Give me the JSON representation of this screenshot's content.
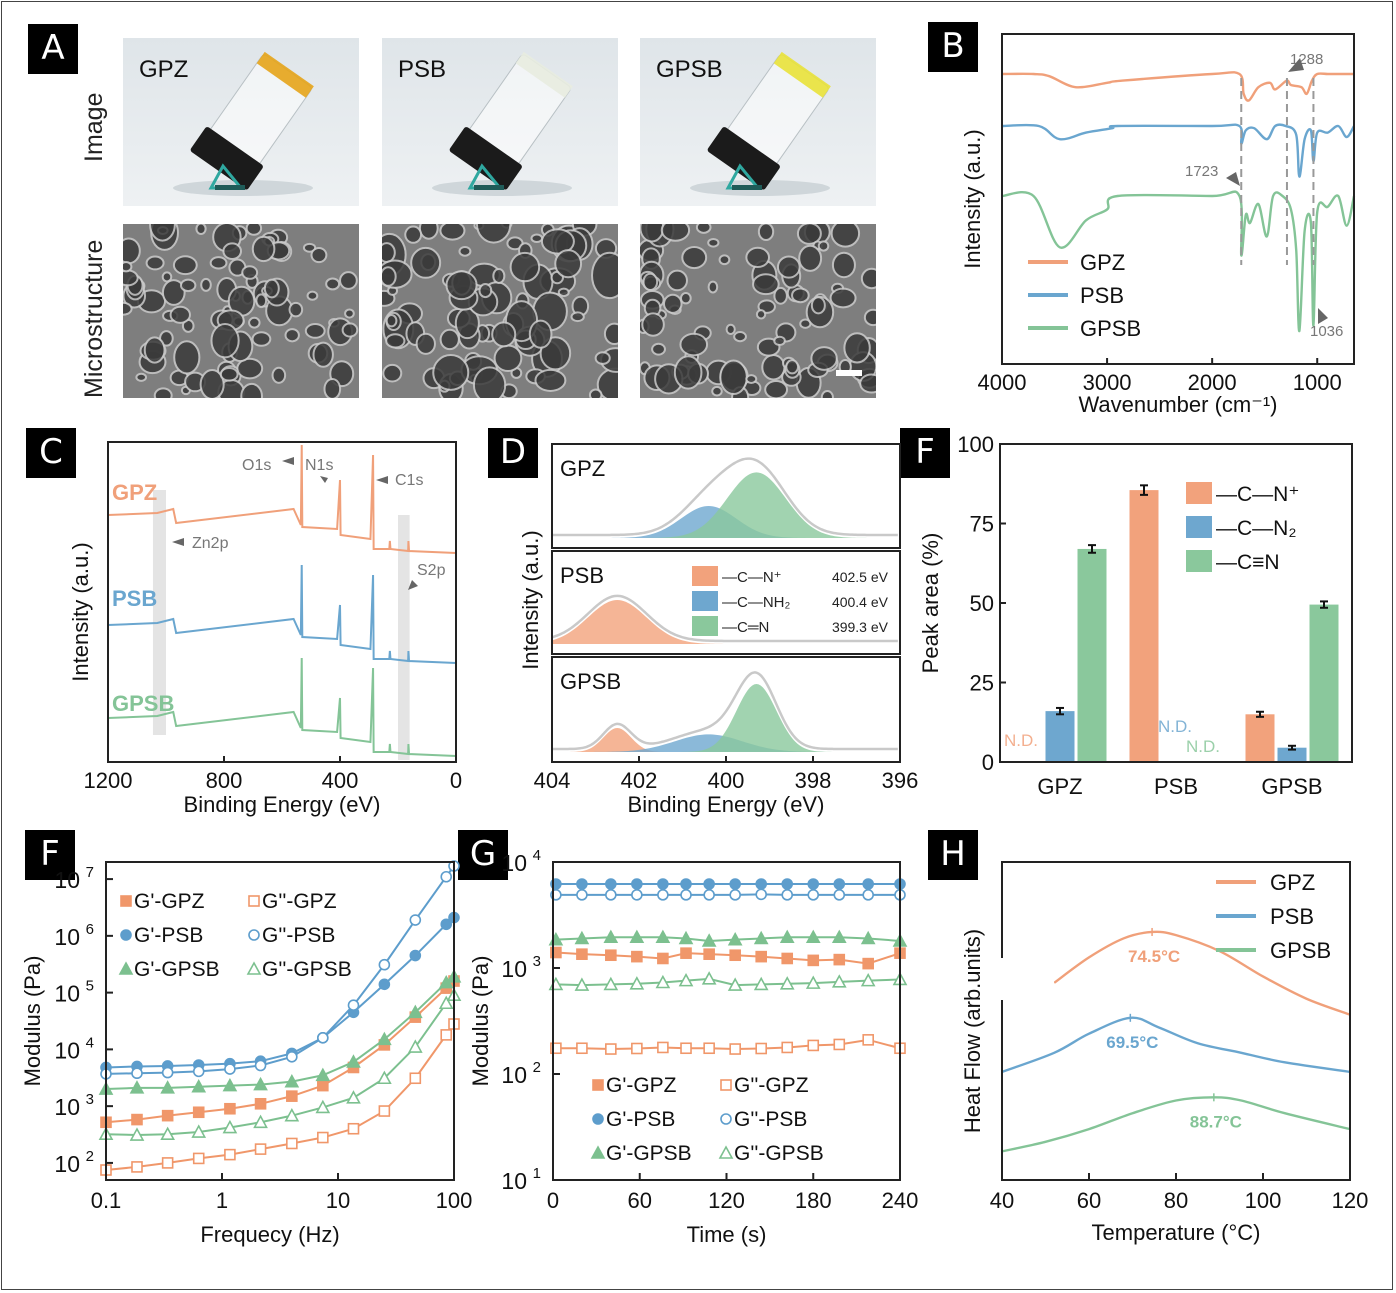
{
  "panels": {
    "A": {
      "label": "A",
      "row_labels": [
        "Image",
        "Microstructure"
      ],
      "samples": [
        "GPZ",
        "PSB",
        "GPSB"
      ],
      "gel_colors": [
        "#e6a419",
        "#e8ece0",
        "#e9e23a"
      ]
    },
    "B": {
      "label": "B"
    },
    "C": {
      "label": "C"
    },
    "D": {
      "label": "D"
    },
    "E": {
      "label": "F"
    },
    "F": {
      "label": "F"
    },
    "G": {
      "label": "G"
    },
    "H": {
      "label": "H"
    }
  },
  "colors": {
    "GPZ": "#f0a07a",
    "PSB": "#6aa6cf",
    "GPSB": "#84c497"
  },
  "chart_data": [
    {
      "id": "B",
      "type": "line",
      "title": "",
      "xlabel": "Wavenumber (cm-1)",
      "ylabel": "Intensity (a.u.)",
      "xlim": [
        4000,
        650
      ],
      "xticks": [
        4000,
        3000,
        2000,
        1000
      ],
      "legend": [
        "GPZ",
        "PSB",
        "GPSB"
      ],
      "legend_position": "bottom-left",
      "annotations": [
        "1288",
        "1723",
        "1036"
      ],
      "marker_lines": [
        1723,
        1288,
        1036
      ],
      "series": [
        {
          "name": "GPZ",
          "x": [
            4000,
            3700,
            3550,
            3300,
            3000,
            2850,
            2000,
            1740,
            1700,
            1650,
            1560,
            1450,
            1400,
            1290,
            1250,
            1150,
            1100,
            1050,
            1000,
            900,
            800,
            650
          ],
          "y": [
            0,
            0,
            -0.1,
            -0.6,
            -0.4,
            -0.3,
            0,
            0,
            -0.9,
            -1.2,
            -0.6,
            -0.4,
            -0.7,
            -0.3,
            -0.5,
            -0.6,
            -0.9,
            -0.3,
            0,
            0,
            0,
            0
          ]
        },
        {
          "name": "PSB",
          "x": [
            4000,
            3650,
            3450,
            3200,
            2950,
            2900,
            2000,
            1740,
            1723,
            1680,
            1600,
            1480,
            1400,
            1300,
            1200,
            1170,
            1120,
            1060,
            1036,
            1000,
            900,
            800,
            720,
            650
          ],
          "y": [
            0,
            0,
            -0.6,
            -0.3,
            -0.1,
            0,
            0,
            0,
            -0.8,
            -0.2,
            -0.1,
            -0.6,
            0,
            0,
            -0.4,
            -2.3,
            -0.6,
            -0.2,
            -1.6,
            -0.3,
            -0.3,
            0,
            -0.5,
            0
          ]
        },
        {
          "name": "GPSB",
          "x": [
            4000,
            3700,
            3450,
            3200,
            3000,
            2900,
            2000,
            1740,
            1723,
            1680,
            1640,
            1560,
            1480,
            1420,
            1330,
            1250,
            1200,
            1170,
            1120,
            1060,
            1036,
            1000,
            900,
            800,
            720,
            650
          ],
          "y": [
            0,
            0,
            -1.9,
            -0.9,
            -0.5,
            0,
            0,
            0,
            -2.2,
            -0.7,
            -1.0,
            -0.3,
            -1.5,
            0,
            0,
            -0.5,
            -2.0,
            -5.0,
            -1.3,
            -1.0,
            -4.8,
            -0.6,
            -0.4,
            0,
            -1.1,
            0
          ]
        }
      ]
    },
    {
      "id": "C",
      "type": "line",
      "xlabel": "Binding Energy (eV)",
      "ylabel": "Intensity (a.u.)",
      "xlim": [
        1200,
        0
      ],
      "xticks": [
        1200,
        800,
        400,
        0
      ],
      "series_labels": [
        "GPZ",
        "PSB",
        "GPSB"
      ],
      "annotations": [
        "O1s",
        "N1s",
        "C1s",
        "Zn2p",
        "S2p"
      ],
      "highlight_bands": [
        [
          1045,
          1000
        ],
        [
          200,
          160
        ]
      ]
    },
    {
      "id": "D",
      "type": "area",
      "xlabel": "Binding Energy (eV)",
      "ylabel": "Intensity (a.u.)",
      "xlim": [
        404,
        396
      ],
      "xticks": [
        404,
        402,
        400,
        398,
        396
      ],
      "subpanels": [
        "GPZ",
        "PSB",
        "GPSB"
      ],
      "legend": [
        {
          "label": "—C—N⁺",
          "value": "402.5 eV",
          "color": "#f2a27c"
        },
        {
          "label": "—C—NH₂",
          "value": "400.4 eV",
          "color": "#6ea7cf"
        },
        {
          "label": "—C═N",
          "value": "399.3 eV",
          "color": "#8ac89c"
        }
      ],
      "peaks": {
        "GPZ": [
          {
            "center": 400.4,
            "height": 0.4,
            "width": 0.9
          },
          {
            "center": 399.3,
            "height": 0.82,
            "width": 0.95
          }
        ],
        "PSB": [
          {
            "center": 402.5,
            "height": 0.55,
            "width": 0.95
          }
        ],
        "GPSB": [
          {
            "center": 402.5,
            "height": 0.3,
            "width": 0.45
          },
          {
            "center": 400.4,
            "height": 0.22,
            "width": 1.1
          },
          {
            "center": 399.3,
            "height": 0.85,
            "width": 0.65
          }
        ]
      }
    },
    {
      "id": "E",
      "type": "bar",
      "title": "",
      "xlabel": "",
      "ylabel": "Peak area (%)",
      "ylim": [
        0,
        100
      ],
      "yticks": [
        0,
        25,
        50,
        75,
        100
      ],
      "categories": [
        "GPZ",
        "PSB",
        "GPSB"
      ],
      "series": [
        {
          "name": "—C—N⁺",
          "values": [
            null,
            85.5,
            15.0
          ],
          "errors": [
            0,
            1.5,
            0.8
          ],
          "color": "#f2a27c"
        },
        {
          "name": "—C—N₂",
          "values": [
            16.0,
            null,
            4.5
          ],
          "errors": [
            1.0,
            0,
            0.6
          ],
          "color": "#6ea7cf"
        },
        {
          "name": "—C≡N",
          "values": [
            67.0,
            null,
            49.5
          ],
          "errors": [
            1.2,
            0,
            1.0
          ],
          "color": "#8ac89c"
        }
      ],
      "nd_label": "N.D.",
      "legend_position": "top-right"
    },
    {
      "id": "F",
      "type": "scatter",
      "xscale": "log",
      "yscale": "log",
      "xlabel": "Frequecy (Hz)",
      "ylabel": "Modulus (Pa)",
      "xlim": [
        0.1,
        100
      ],
      "ylim": [
        50,
        20000000
      ],
      "xticks": [
        "0.1",
        "1",
        "10",
        "100"
      ],
      "yticks_exp": [
        2,
        3,
        4,
        5,
        6,
        7
      ],
      "x": [
        0.1,
        0.185,
        0.34,
        0.63,
        1.17,
        2.15,
        4.0,
        7.4,
        13.6,
        25.1,
        46.4,
        85.7,
        100
      ],
      "series": [
        {
          "name": "G'-GPZ",
          "marker": "square-filled",
          "color": "#f0976a",
          "values": [
            520,
            580,
            680,
            780,
            900,
            1100,
            1500,
            2300,
            4800,
            12000,
            37000,
            120000,
            160000
          ]
        },
        {
          "name": "G''-GPZ",
          "marker": "square-open",
          "color": "#f0976a",
          "values": [
            75,
            85,
            100,
            120,
            140,
            175,
            220,
            280,
            400,
            820,
            3100,
            18000,
            28000
          ]
        },
        {
          "name": "G'-PSB",
          "marker": "circle-filled",
          "color": "#5d9dcc",
          "values": [
            4800,
            5000,
            5100,
            5300,
            5600,
            6200,
            8500,
            16000,
            45000,
            140000,
            450000,
            1600000,
            2100000
          ]
        },
        {
          "name": "G''-PSB",
          "marker": "circle-open",
          "color": "#5d9dcc",
          "values": [
            3700,
            3800,
            3900,
            4100,
            4500,
            5200,
            7400,
            16000,
            60000,
            310000,
            1900000,
            11000000,
            17000000
          ]
        },
        {
          "name": "G'-GPSB",
          "marker": "triangle-filled",
          "color": "#7cc08f",
          "values": [
            2000,
            2100,
            2100,
            2200,
            2300,
            2400,
            2700,
            3500,
            6000,
            15000,
            45000,
            150000,
            190000
          ]
        },
        {
          "name": "G''-GPSB",
          "marker": "triangle-open",
          "color": "#7cc08f",
          "values": [
            320,
            310,
            320,
            350,
            420,
            520,
            680,
            950,
            1400,
            3100,
            11000,
            65000,
            90000
          ]
        }
      ],
      "legend_position": "top-left"
    },
    {
      "id": "G",
      "type": "scatter",
      "yscale": "log",
      "xlabel": "Time (s)",
      "ylabel": "Modulus (Pa)",
      "xlim": [
        0,
        240
      ],
      "ylim": [
        10,
        10000
      ],
      "xticks": [
        0,
        60,
        120,
        180,
        240
      ],
      "yticks_exp": [
        1,
        2,
        3,
        4
      ],
      "x": [
        2,
        20,
        40,
        58,
        76,
        92,
        108,
        126,
        144,
        162,
        180,
        198,
        218,
        240
      ],
      "series": [
        {
          "name": "G'-GPZ",
          "marker": "square-filled",
          "color": "#f0976a",
          "values": [
            1400,
            1350,
            1320,
            1280,
            1230,
            1380,
            1350,
            1320,
            1280,
            1230,
            1180,
            1200,
            1100,
            1380
          ]
        },
        {
          "name": "G''-GPZ",
          "marker": "square-open",
          "color": "#f0976a",
          "values": [
            175,
            175,
            172,
            174,
            178,
            175,
            175,
            172,
            174,
            178,
            186,
            190,
            210,
            175
          ]
        },
        {
          "name": "G'-PSB",
          "marker": "circle-filled",
          "color": "#5d9dcc",
          "values": [
            6200,
            6200,
            6200,
            6200,
            6200,
            6200,
            6200,
            6200,
            6200,
            6200,
            6200,
            6200,
            6200,
            6200
          ]
        },
        {
          "name": "G''-PSB",
          "marker": "circle-open",
          "color": "#5d9dcc",
          "values": [
            4900,
            4900,
            4900,
            4900,
            4900,
            4900,
            4900,
            4900,
            4950,
            4900,
            4900,
            4900,
            4900,
            4900
          ]
        },
        {
          "name": "G'-GPSB",
          "marker": "triangle-filled",
          "color": "#7cc08f",
          "values": [
            1850,
            1900,
            1950,
            1950,
            1950,
            1900,
            1800,
            1850,
            1900,
            1950,
            1950,
            1950,
            1900,
            1800
          ]
        },
        {
          "name": "G''-GPSB",
          "marker": "triangle-open",
          "color": "#7cc08f",
          "values": [
            700,
            690,
            700,
            710,
            730,
            760,
            790,
            690,
            700,
            710,
            720,
            740,
            760,
            780
          ]
        }
      ],
      "legend_position": "bottom"
    },
    {
      "id": "H",
      "type": "line",
      "xlabel": "Temperature (°C)",
      "ylabel": "Heat Flow (arb.units)",
      "xlim": [
        40,
        120
      ],
      "xticks": [
        40,
        60,
        80,
        100,
        120
      ],
      "legend_position": "top-right",
      "series": [
        {
          "name": "GPZ",
          "peak": 74.5,
          "peak_label": "74.5°C",
          "color": "#f0a07a",
          "x": [
            52,
            60,
            68,
            74.5,
            80,
            90,
            100,
            110,
            120
          ],
          "y": [
            0.62,
            0.7,
            0.76,
            0.78,
            0.77,
            0.72,
            0.64,
            0.57,
            0.52
          ]
        },
        {
          "name": "PSB",
          "peak": 69.5,
          "peak_label": "69.5°C",
          "color": "#6aa6cf",
          "x": [
            40,
            52,
            60,
            69.5,
            76,
            85,
            95,
            105,
            120
          ],
          "y": [
            0.34,
            0.4,
            0.46,
            0.51,
            0.48,
            0.43,
            0.4,
            0.37,
            0.34
          ]
        },
        {
          "name": "GPSB",
          "peak": 88.7,
          "peak_label": "88.7°C",
          "color": "#84c497",
          "x": [
            40,
            50,
            60,
            70,
            80,
            88.7,
            95,
            105,
            120
          ],
          "y": [
            0.09,
            0.12,
            0.16,
            0.21,
            0.25,
            0.26,
            0.25,
            0.21,
            0.16
          ]
        }
      ]
    }
  ]
}
